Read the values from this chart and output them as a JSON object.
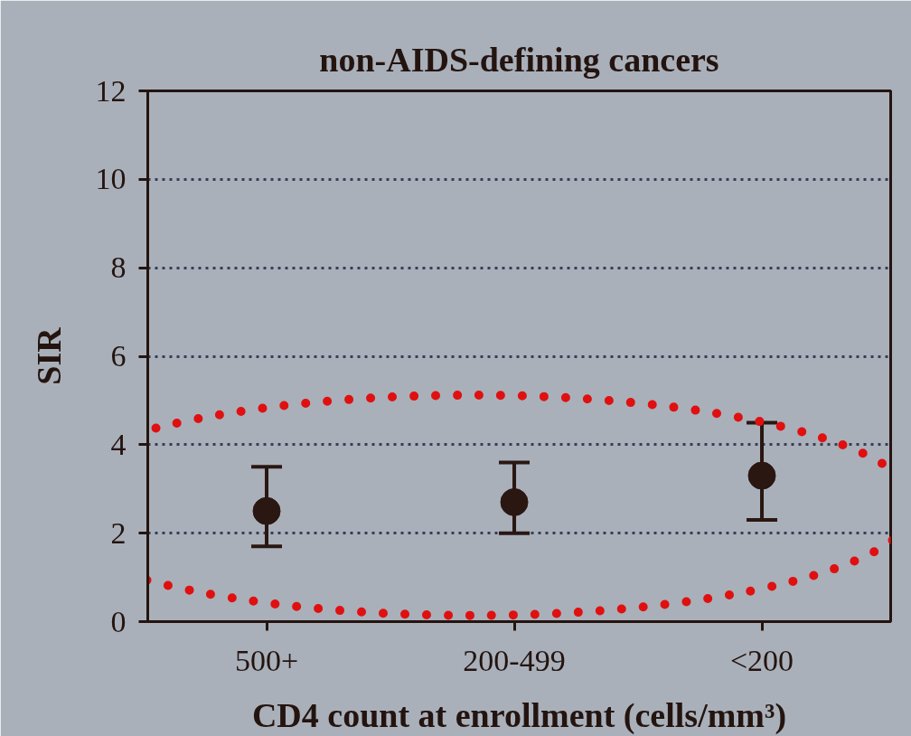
{
  "chart_data": {
    "type": "scatter",
    "title": "non-AIDS-defining cancers",
    "xlabel": "CD4 count at enrollment (cells/mm³)",
    "ylabel": "SIR",
    "categories": [
      "500+",
      "200-499",
      "<200"
    ],
    "values": [
      2.5,
      2.7,
      3.3
    ],
    "errors": [
      [
        1.7,
        3.5
      ],
      [
        2.0,
        3.6
      ],
      [
        2.3,
        4.5
      ]
    ],
    "color": "#2a1712",
    "ylim": [
      0,
      12
    ],
    "yticks": [
      0,
      2,
      4,
      6,
      8,
      10,
      12
    ],
    "grid": "y",
    "marker": "circle"
  }
}
